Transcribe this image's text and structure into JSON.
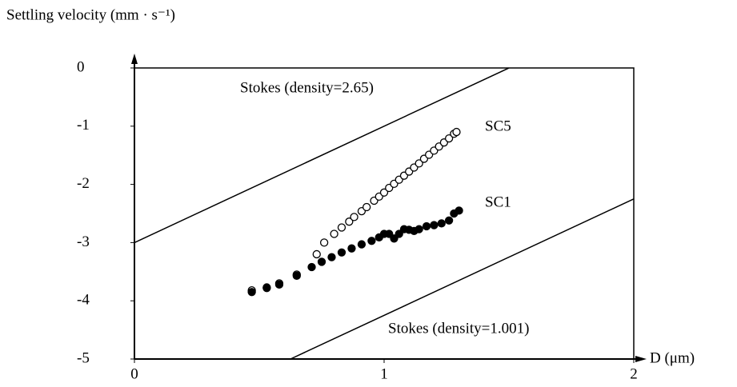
{
  "chart_data": {
    "type": "scatter",
    "y_label": "Settling velocity (mm · s⁻¹)",
    "x_label": "D (μm)",
    "xlim": [
      0,
      2
    ],
    "xticks": [
      0,
      1,
      2
    ],
    "ylim": [
      -5,
      0
    ],
    "yticks": [
      0,
      -1,
      -2,
      -3,
      -4,
      -5
    ],
    "lines": [
      {
        "name": "Stokes (density=2.65)",
        "x": [
          0,
          1.5
        ],
        "values": [
          -3,
          0
        ]
      },
      {
        "name": "Stokes (density=1.001)",
        "x": [
          0.625,
          2
        ],
        "values": [
          -5,
          -2.25
        ]
      }
    ],
    "series": [
      {
        "name": "SC5",
        "color": "#ffffff",
        "x": [
          0.47,
          0.53,
          0.58,
          0.65,
          0.73,
          0.76,
          0.8,
          0.83,
          0.86,
          0.88,
          0.91,
          0.93,
          0.96,
          0.98,
          1.0,
          1.02,
          1.04,
          1.06,
          1.08,
          1.1,
          1.12,
          1.14,
          1.16,
          1.18,
          1.2,
          1.22,
          1.24,
          1.26,
          1.28,
          1.29
        ],
        "values": [
          -3.82,
          -3.77,
          -3.7,
          -3.55,
          -3.2,
          -3.0,
          -2.85,
          -2.74,
          -2.64,
          -2.56,
          -2.46,
          -2.39,
          -2.28,
          -2.21,
          -2.14,
          -2.06,
          -1.99,
          -1.92,
          -1.85,
          -1.78,
          -1.71,
          -1.64,
          -1.56,
          -1.49,
          -1.42,
          -1.35,
          -1.28,
          -1.21,
          -1.13,
          -1.1
        ]
      },
      {
        "name": "SC1",
        "color": "#000000",
        "x": [
          0.47,
          0.53,
          0.58,
          0.65,
          0.71,
          0.75,
          0.79,
          0.83,
          0.87,
          0.91,
          0.95,
          0.98,
          1.0,
          1.02,
          1.04,
          1.06,
          1.08,
          1.1,
          1.12,
          1.14,
          1.17,
          1.2,
          1.23,
          1.26,
          1.28,
          1.3
        ],
        "values": [
          -3.85,
          -3.78,
          -3.72,
          -3.57,
          -3.42,
          -3.33,
          -3.25,
          -3.17,
          -3.1,
          -3.03,
          -2.97,
          -2.91,
          -2.85,
          -2.85,
          -2.93,
          -2.85,
          -2.77,
          -2.78,
          -2.8,
          -2.77,
          -2.72,
          -2.7,
          -2.67,
          -2.62,
          -2.5,
          -2.45
        ]
      }
    ]
  }
}
